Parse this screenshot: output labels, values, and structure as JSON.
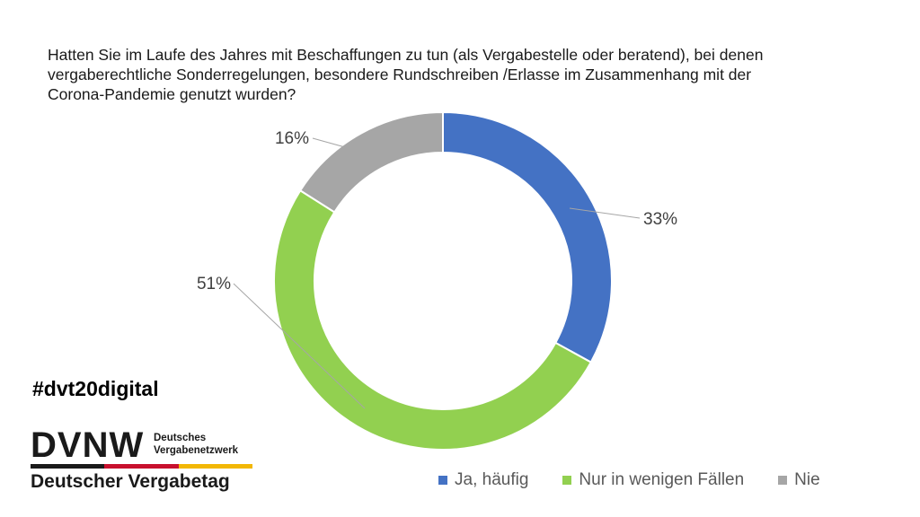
{
  "title_lines": [
    "Hatten Sie im Laufe des Jahres mit Beschaffungen  zu tun (als Vergabestelle oder beratend),  bei denen",
    "vergaberechtliche  Sonderregelungen,  besondere  Rundschreiben /Erlasse im Zusammenhang mit der",
    "Corona-Pandemie  genutzt  wurden?"
  ],
  "hashtag": "#dvt20digital",
  "logo": {
    "mark": "DVNW",
    "sub_line1": "Deutsches",
    "sub_line2": "Vergabenetzwerk",
    "bottom": "Deutscher Vergabetag",
    "stripe_colors": [
      "#1a1a1a",
      "#c8102e",
      "#f2b705"
    ]
  },
  "chart_data": {
    "type": "pie",
    "donut": true,
    "title": "",
    "categories": [
      "Ja, häufig",
      "Nur in wenigen Fällen",
      "Nie"
    ],
    "values": [
      33,
      51,
      16
    ],
    "labels": [
      "33%",
      "51%",
      "16%"
    ],
    "colors": [
      "#4472c4",
      "#92d050",
      "#a6a6a6"
    ],
    "legend_position": "bottom-right"
  }
}
